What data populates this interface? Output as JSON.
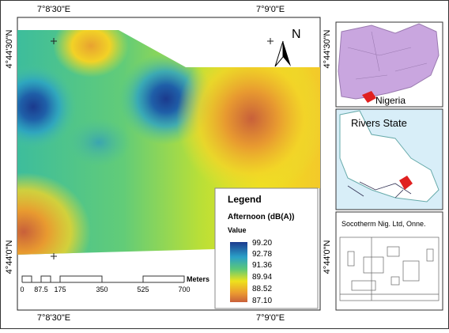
{
  "grid_labels": {
    "top": [
      "7°8'30\"E",
      "7°9'0\"E"
    ],
    "bottom": [
      "7°8'30\"E",
      "7°9'0\"E"
    ],
    "left": [
      "4°44'30\"N",
      "4°44'0\"N"
    ],
    "right": [
      "4°44'30\"N",
      "4°44'0\"N"
    ]
  },
  "north_arrow": "N",
  "legend": {
    "title": "Legend",
    "layer": "Afternoon (dB(A))",
    "field": "Value",
    "values": [
      "99.20",
      "92.78",
      "91.36",
      "89.94",
      "88.52",
      "87.10"
    ]
  },
  "scale_bar": {
    "labels": [
      "0",
      "87.5",
      "175",
      "350",
      "525",
      "700"
    ],
    "unit": "Meters"
  },
  "insets": [
    "Nigeria",
    "Rivers State",
    "Socotherm Nig. Ltd, Onne."
  ]
}
